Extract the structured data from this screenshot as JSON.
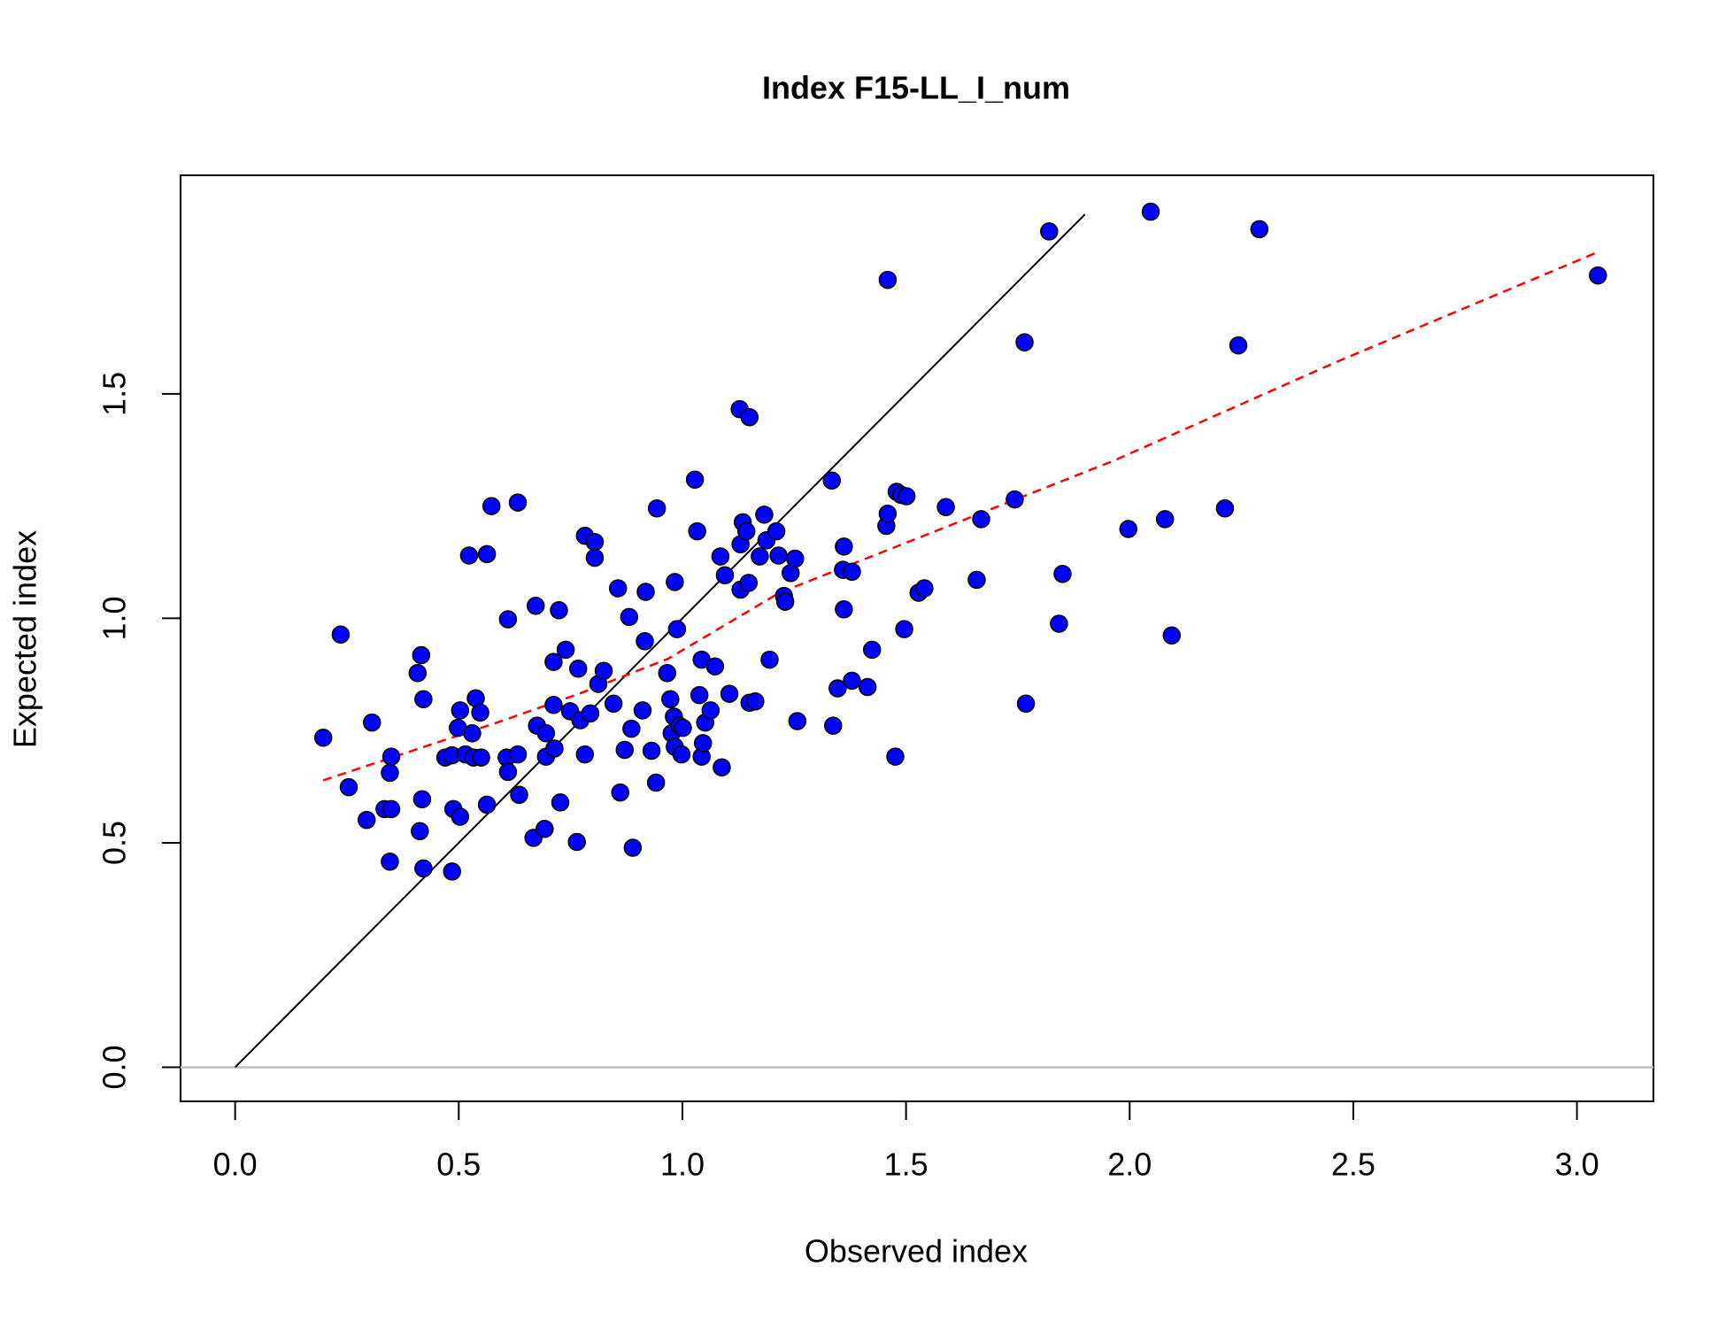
{
  "chart_data": {
    "type": "scatter",
    "title": "Index F15-LL_I_num",
    "xlabel": "Observed index",
    "ylabel": "Expected index",
    "xlim": [
      -0.122,
      3.171
    ],
    "ylim": [
      -0.076,
      1.987
    ],
    "xticks": [
      {
        "value": 0,
        "label": "0.0"
      },
      0.5,
      {
        "value": 1,
        "label": "1.0"
      },
      1.5,
      {
        "value": 2,
        "label": "2.0"
      },
      2.5,
      {
        "value": 3,
        "label": "3.0"
      }
    ],
    "yticks": [
      {
        "value": 0,
        "label": "0.0"
      },
      0.5,
      {
        "value": 1,
        "label": "1.0"
      },
      1.5
    ],
    "grid": false,
    "series": [
      {
        "style": "points",
        "color": "#0000ff",
        "x": [
          0.197,
          0.236,
          0.254,
          0.294,
          0.306,
          0.334,
          0.349,
          0.349,
          0.346,
          0.346,
          0.408,
          0.416,
          0.421,
          0.418,
          0.413,
          0.421,
          0.47,
          0.485,
          0.488,
          0.485,
          0.498,
          0.503,
          0.503,
          0.515,
          0.523,
          0.53,
          0.538,
          0.533,
          0.548,
          0.55,
          0.563,
          0.563,
          0.573,
          0.61,
          0.607,
          0.61,
          0.632,
          0.632,
          0.635,
          0.667,
          0.672,
          0.675,
          0.692,
          0.695,
          0.695,
          0.712,
          0.712,
          0.714,
          0.724,
          0.727,
          0.739,
          0.749,
          0.767,
          0.764,
          0.772,
          0.782,
          0.782,
          0.794,
          0.804,
          0.804,
          0.812,
          0.824,
          0.846,
          0.856,
          0.861,
          0.871,
          0.881,
          0.886,
          0.889,
          0.911,
          0.918,
          0.916,
          0.931,
          0.941,
          0.943,
          0.966,
          0.973,
          0.976,
          0.981,
          0.983,
          0.983,
          0.988,
          0.993,
          0.998,
          1.001,
          1.028,
          1.033,
          1.038,
          1.043,
          1.046,
          1.043,
          1.051,
          1.063,
          1.073,
          1.085,
          1.088,
          1.095,
          1.105,
          1.128,
          1.13,
          1.13,
          1.135,
          1.143,
          1.15,
          1.148,
          1.15,
          1.163,
          1.173,
          1.183,
          1.188,
          1.195,
          1.21,
          1.215,
          1.227,
          1.23,
          1.242,
          1.252,
          1.257,
          1.334,
          1.337,
          1.347,
          1.361,
          1.359,
          1.361,
          1.379,
          1.379,
          1.414,
          1.424,
          1.456,
          1.459,
          1.459,
          1.476,
          1.479,
          1.489,
          1.496,
          1.501,
          1.528,
          1.541,
          1.589,
          1.658,
          1.668,
          1.743,
          1.765,
          1.768,
          1.82,
          1.842,
          1.85,
          1.997,
          2.047,
          2.079,
          2.094,
          2.213,
          2.243,
          2.29,
          3.047
        ],
        "y": [
          0.734,
          0.964,
          0.624,
          0.551,
          0.768,
          0.575,
          0.575,
          0.692,
          0.656,
          0.458,
          0.878,
          0.918,
          0.82,
          0.597,
          0.526,
          0.443,
          0.69,
          0.695,
          0.575,
          0.436,
          0.756,
          0.795,
          0.558,
          0.697,
          1.14,
          0.744,
          0.822,
          0.69,
          0.79,
          0.69,
          1.143,
          0.585,
          1.25,
          0.998,
          0.69,
          0.658,
          1.258,
          0.697,
          0.607,
          0.511,
          1.028,
          0.761,
          0.531,
          0.744,
          0.692,
          0.903,
          0.807,
          0.71,
          1.018,
          0.59,
          0.93,
          0.793,
          0.888,
          0.502,
          0.773,
          1.184,
          0.697,
          0.788,
          1.17,
          1.135,
          0.854,
          0.883,
          0.81,
          1.067,
          0.612,
          0.707,
          1.003,
          0.754,
          0.489,
          0.795,
          1.059,
          0.949,
          0.705,
          0.634,
          1.245,
          0.878,
          0.82,
          0.744,
          0.781,
          0.714,
          1.081,
          0.976,
          0.761,
          0.697,
          0.756,
          1.309,
          1.194,
          0.829,
          0.692,
          0.722,
          0.908,
          0.768,
          0.795,
          0.893,
          1.138,
          0.668,
          1.096,
          0.832,
          1.466,
          1.064,
          1.165,
          1.214,
          1.194,
          1.448,
          1.079,
          0.812,
          0.815,
          1.138,
          1.231,
          1.174,
          0.908,
          1.194,
          1.14,
          1.05,
          1.037,
          1.101,
          1.133,
          0.771,
          1.307,
          0.761,
          0.844,
          1.16,
          1.108,
          1.02,
          1.104,
          0.861,
          0.847,
          0.93,
          1.206,
          1.233,
          1.754,
          0.692,
          1.282,
          1.275,
          0.976,
          1.272,
          1.057,
          1.067,
          1.248,
          1.086,
          1.221,
          1.265,
          1.615,
          0.81,
          1.862,
          0.988,
          1.099,
          1.199,
          1.906,
          1.221,
          0.962,
          1.245,
          1.608,
          1.867,
          1.764
        ]
      },
      {
        "style": "line",
        "color": "#000000",
        "x": [
          0,
          1.9
        ],
        "y": [
          0,
          1.9
        ]
      },
      {
        "style": "dashed",
        "color": "#ff0000",
        "x": [
          0.197,
          0.595,
          0.769,
          0.968,
          1.217,
          1.466,
          1.964,
          2.462,
          3.047
        ],
        "y": [
          0.639,
          0.771,
          0.832,
          0.91,
          1.057,
          1.155,
          1.351,
          1.571,
          1.816
        ]
      },
      {
        "style": "hline",
        "color": "#bebebe",
        "y": 0
      }
    ]
  }
}
